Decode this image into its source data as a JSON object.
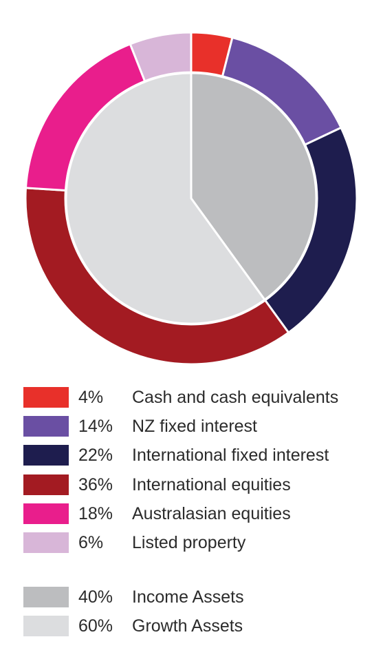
{
  "chart_data": {
    "type": "pie",
    "style": "nested-donut",
    "outer_ring": {
      "slices": [
        {
          "label": "Cash and cash equivalents",
          "value": 4,
          "value_label": "4%",
          "color": "#e8302a"
        },
        {
          "label": "NZ fixed interest",
          "value": 14,
          "value_label": "14%",
          "color": "#6a4fa3"
        },
        {
          "label": "International fixed interest",
          "value": 22,
          "value_label": "22%",
          "color": "#1e1d4e"
        },
        {
          "label": "International equities",
          "value": 36,
          "value_label": "36%",
          "color": "#a31b22"
        },
        {
          "label": "Australasian equities",
          "value": 18,
          "value_label": "18%",
          "color": "#e91e8c"
        },
        {
          "label": "Listed property",
          "value": 6,
          "value_label": "6%",
          "color": "#d8b6d8"
        }
      ]
    },
    "inner_pie": {
      "slices": [
        {
          "label": "Income Assets",
          "value": 40,
          "value_label": "40%",
          "color": "#bcbdbf"
        },
        {
          "label": "Growth Assets",
          "value": 60,
          "value_label": "60%",
          "color": "#dcdddf"
        }
      ]
    }
  }
}
